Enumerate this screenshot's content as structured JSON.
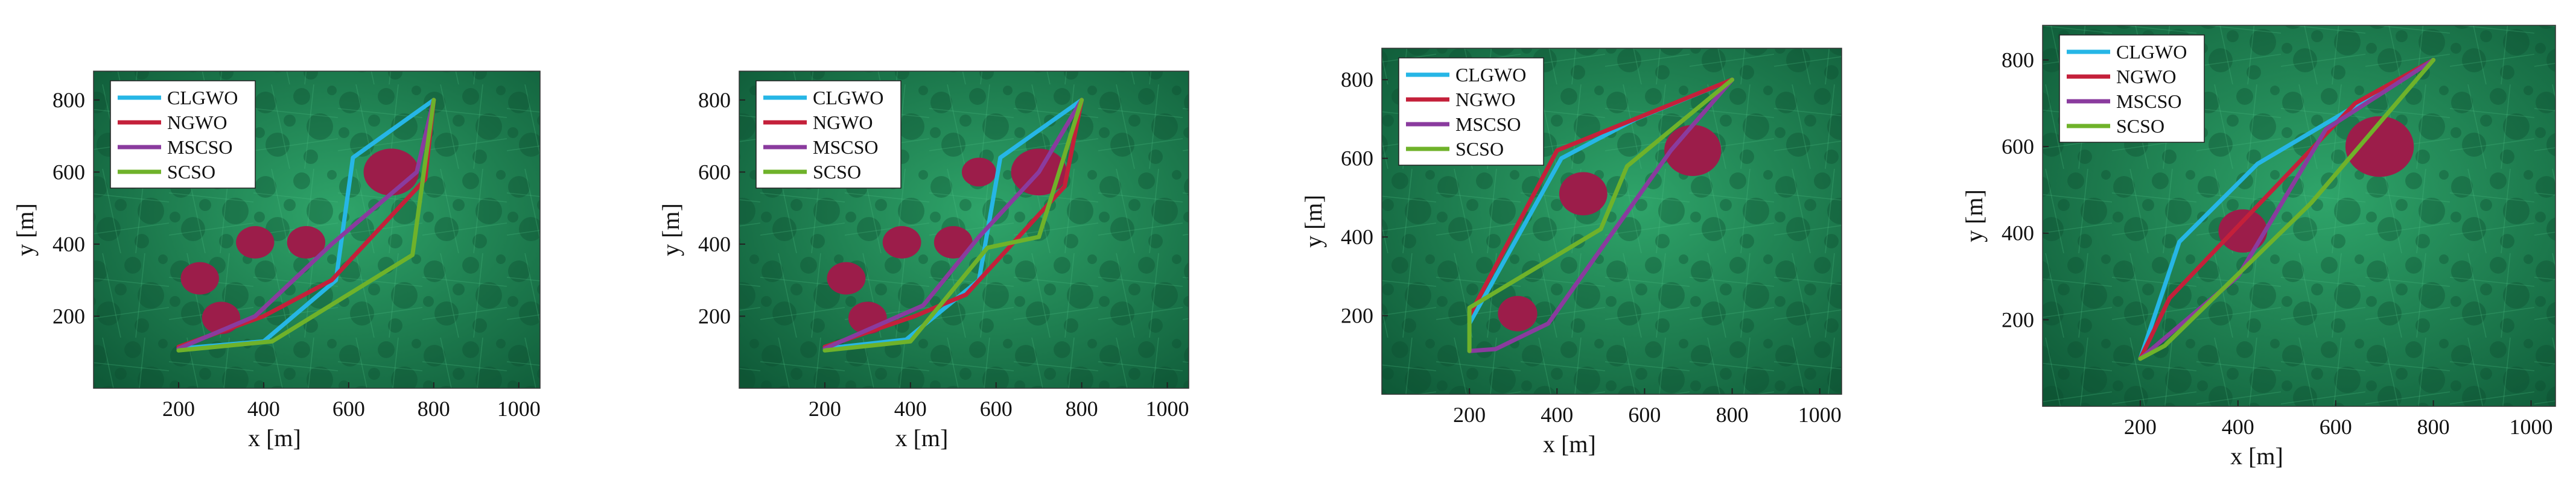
{
  "colors": {
    "CLGWO": "#26b6e6",
    "NGWO": "#c4203a",
    "MSCSO": "#8a3b9e",
    "SCSO": "#6fb22a",
    "obstacle": "#9c1d4a",
    "terrain_dark": "#0f5a38",
    "terrain_light": "#2fa56a"
  },
  "chart_data": [
    {
      "type": "line",
      "panel": 1,
      "xlabel": "x [m]",
      "ylabel": "y [m]",
      "xlim": [
        0,
        1050
      ],
      "ylim": [
        0,
        880
      ],
      "xticks": [
        200,
        400,
        600,
        800,
        1000
      ],
      "yticks": [
        200,
        400,
        600,
        800
      ],
      "legend_position": "top-left",
      "obstacles": [
        {
          "x": 250,
          "y": 305,
          "r": 45
        },
        {
          "x": 300,
          "y": 195,
          "r": 45
        },
        {
          "x": 380,
          "y": 405,
          "r": 45
        },
        {
          "x": 500,
          "y": 405,
          "r": 45
        },
        {
          "x": 700,
          "y": 600,
          "r": 65
        }
      ],
      "series": [
        {
          "name": "CLGWO",
          "x": [
            200,
            400,
            570,
            610,
            800
          ],
          "y": [
            110,
            130,
            300,
            640,
            800
          ]
        },
        {
          "name": "NGWO",
          "x": [
            200,
            400,
            560,
            780,
            800
          ],
          "y": [
            115,
            200,
            300,
            580,
            800
          ]
        },
        {
          "name": "MSCSO",
          "x": [
            200,
            380,
            560,
            760,
            800
          ],
          "y": [
            110,
            200,
            400,
            600,
            800
          ]
        },
        {
          "name": "SCSO",
          "x": [
            200,
            420,
            750,
            800
          ],
          "y": [
            105,
            130,
            370,
            800
          ]
        }
      ]
    },
    {
      "type": "line",
      "panel": 2,
      "xlabel": "x [m]",
      "ylabel": "y [m]",
      "xlim": [
        0,
        1050
      ],
      "ylim": [
        0,
        880
      ],
      "xticks": [
        200,
        400,
        600,
        800,
        1000
      ],
      "yticks": [
        200,
        400,
        600,
        800
      ],
      "legend_position": "top-left",
      "obstacles": [
        {
          "x": 250,
          "y": 305,
          "r": 45
        },
        {
          "x": 300,
          "y": 195,
          "r": 45
        },
        {
          "x": 380,
          "y": 405,
          "r": 45
        },
        {
          "x": 500,
          "y": 405,
          "r": 45
        },
        {
          "x": 560,
          "y": 600,
          "r": 40
        },
        {
          "x": 700,
          "y": 600,
          "r": 65
        }
      ],
      "series": [
        {
          "name": "CLGWO",
          "x": [
            200,
            390,
            560,
            610,
            800
          ],
          "y": [
            110,
            135,
            300,
            640,
            800
          ]
        },
        {
          "name": "NGWO",
          "x": [
            200,
            410,
            530,
            760,
            800
          ],
          "y": [
            115,
            200,
            260,
            560,
            800
          ]
        },
        {
          "name": "MSCSO",
          "x": [
            200,
            430,
            560,
            700,
            800
          ],
          "y": [
            110,
            230,
            420,
            600,
            800
          ]
        },
        {
          "name": "SCSO",
          "x": [
            200,
            400,
            580,
            700,
            800
          ],
          "y": [
            105,
            130,
            390,
            420,
            800
          ]
        }
      ]
    },
    {
      "type": "line",
      "panel": 3,
      "xlabel": "x [m]",
      "ylabel": "y [m]",
      "xlim": [
        0,
        1050
      ],
      "ylim": [
        0,
        880
      ],
      "xticks": [
        200,
        400,
        600,
        800,
        1000
      ],
      "yticks": [
        200,
        400,
        600,
        800
      ],
      "legend_position": "top-left",
      "obstacles": [
        {
          "x": 310,
          "y": 205,
          "r": 45
        },
        {
          "x": 460,
          "y": 510,
          "r": 55
        },
        {
          "x": 710,
          "y": 620,
          "r": 65
        }
      ],
      "series": [
        {
          "name": "CLGWO",
          "x": [
            200,
            410,
            580,
            800
          ],
          "y": [
            180,
            600,
            700,
            800
          ]
        },
        {
          "name": "NGWO",
          "x": [
            200,
            400,
            600,
            800
          ],
          "y": [
            200,
            620,
            710,
            800
          ]
        },
        {
          "name": "MSCSO",
          "x": [
            200,
            260,
            380,
            660,
            800
          ],
          "y": [
            110,
            115,
            180,
            620,
            800
          ]
        },
        {
          "name": "SCSO",
          "x": [
            200,
            200,
            500,
            560,
            800
          ],
          "y": [
            110,
            220,
            420,
            580,
            800
          ]
        }
      ]
    },
    {
      "type": "line",
      "panel": 4,
      "xlabel": "x [m]",
      "ylabel": "y [m]",
      "xlim": [
        0,
        1050
      ],
      "ylim": [
        0,
        880
      ],
      "xticks": [
        200,
        400,
        600,
        800,
        1000
      ],
      "yticks": [
        200,
        400,
        600,
        800
      ],
      "legend_position": "top-left",
      "obstacles": [
        {
          "x": 410,
          "y": 405,
          "r": 50
        },
        {
          "x": 690,
          "y": 600,
          "r": 70
        }
      ],
      "series": [
        {
          "name": "CLGWO",
          "x": [
            200,
            280,
            440,
            800
          ],
          "y": [
            110,
            380,
            560,
            800
          ]
        },
        {
          "name": "NGWO",
          "x": [
            200,
            260,
            640,
            800
          ],
          "y": [
            110,
            250,
            700,
            800
          ]
        },
        {
          "name": "MSCSO",
          "x": [
            200,
            400,
            580,
            800
          ],
          "y": [
            110,
            300,
            640,
            800
          ]
        },
        {
          "name": "SCSO",
          "x": [
            200,
            250,
            550,
            800
          ],
          "y": [
            110,
            140,
            470,
            800
          ]
        }
      ]
    }
  ]
}
